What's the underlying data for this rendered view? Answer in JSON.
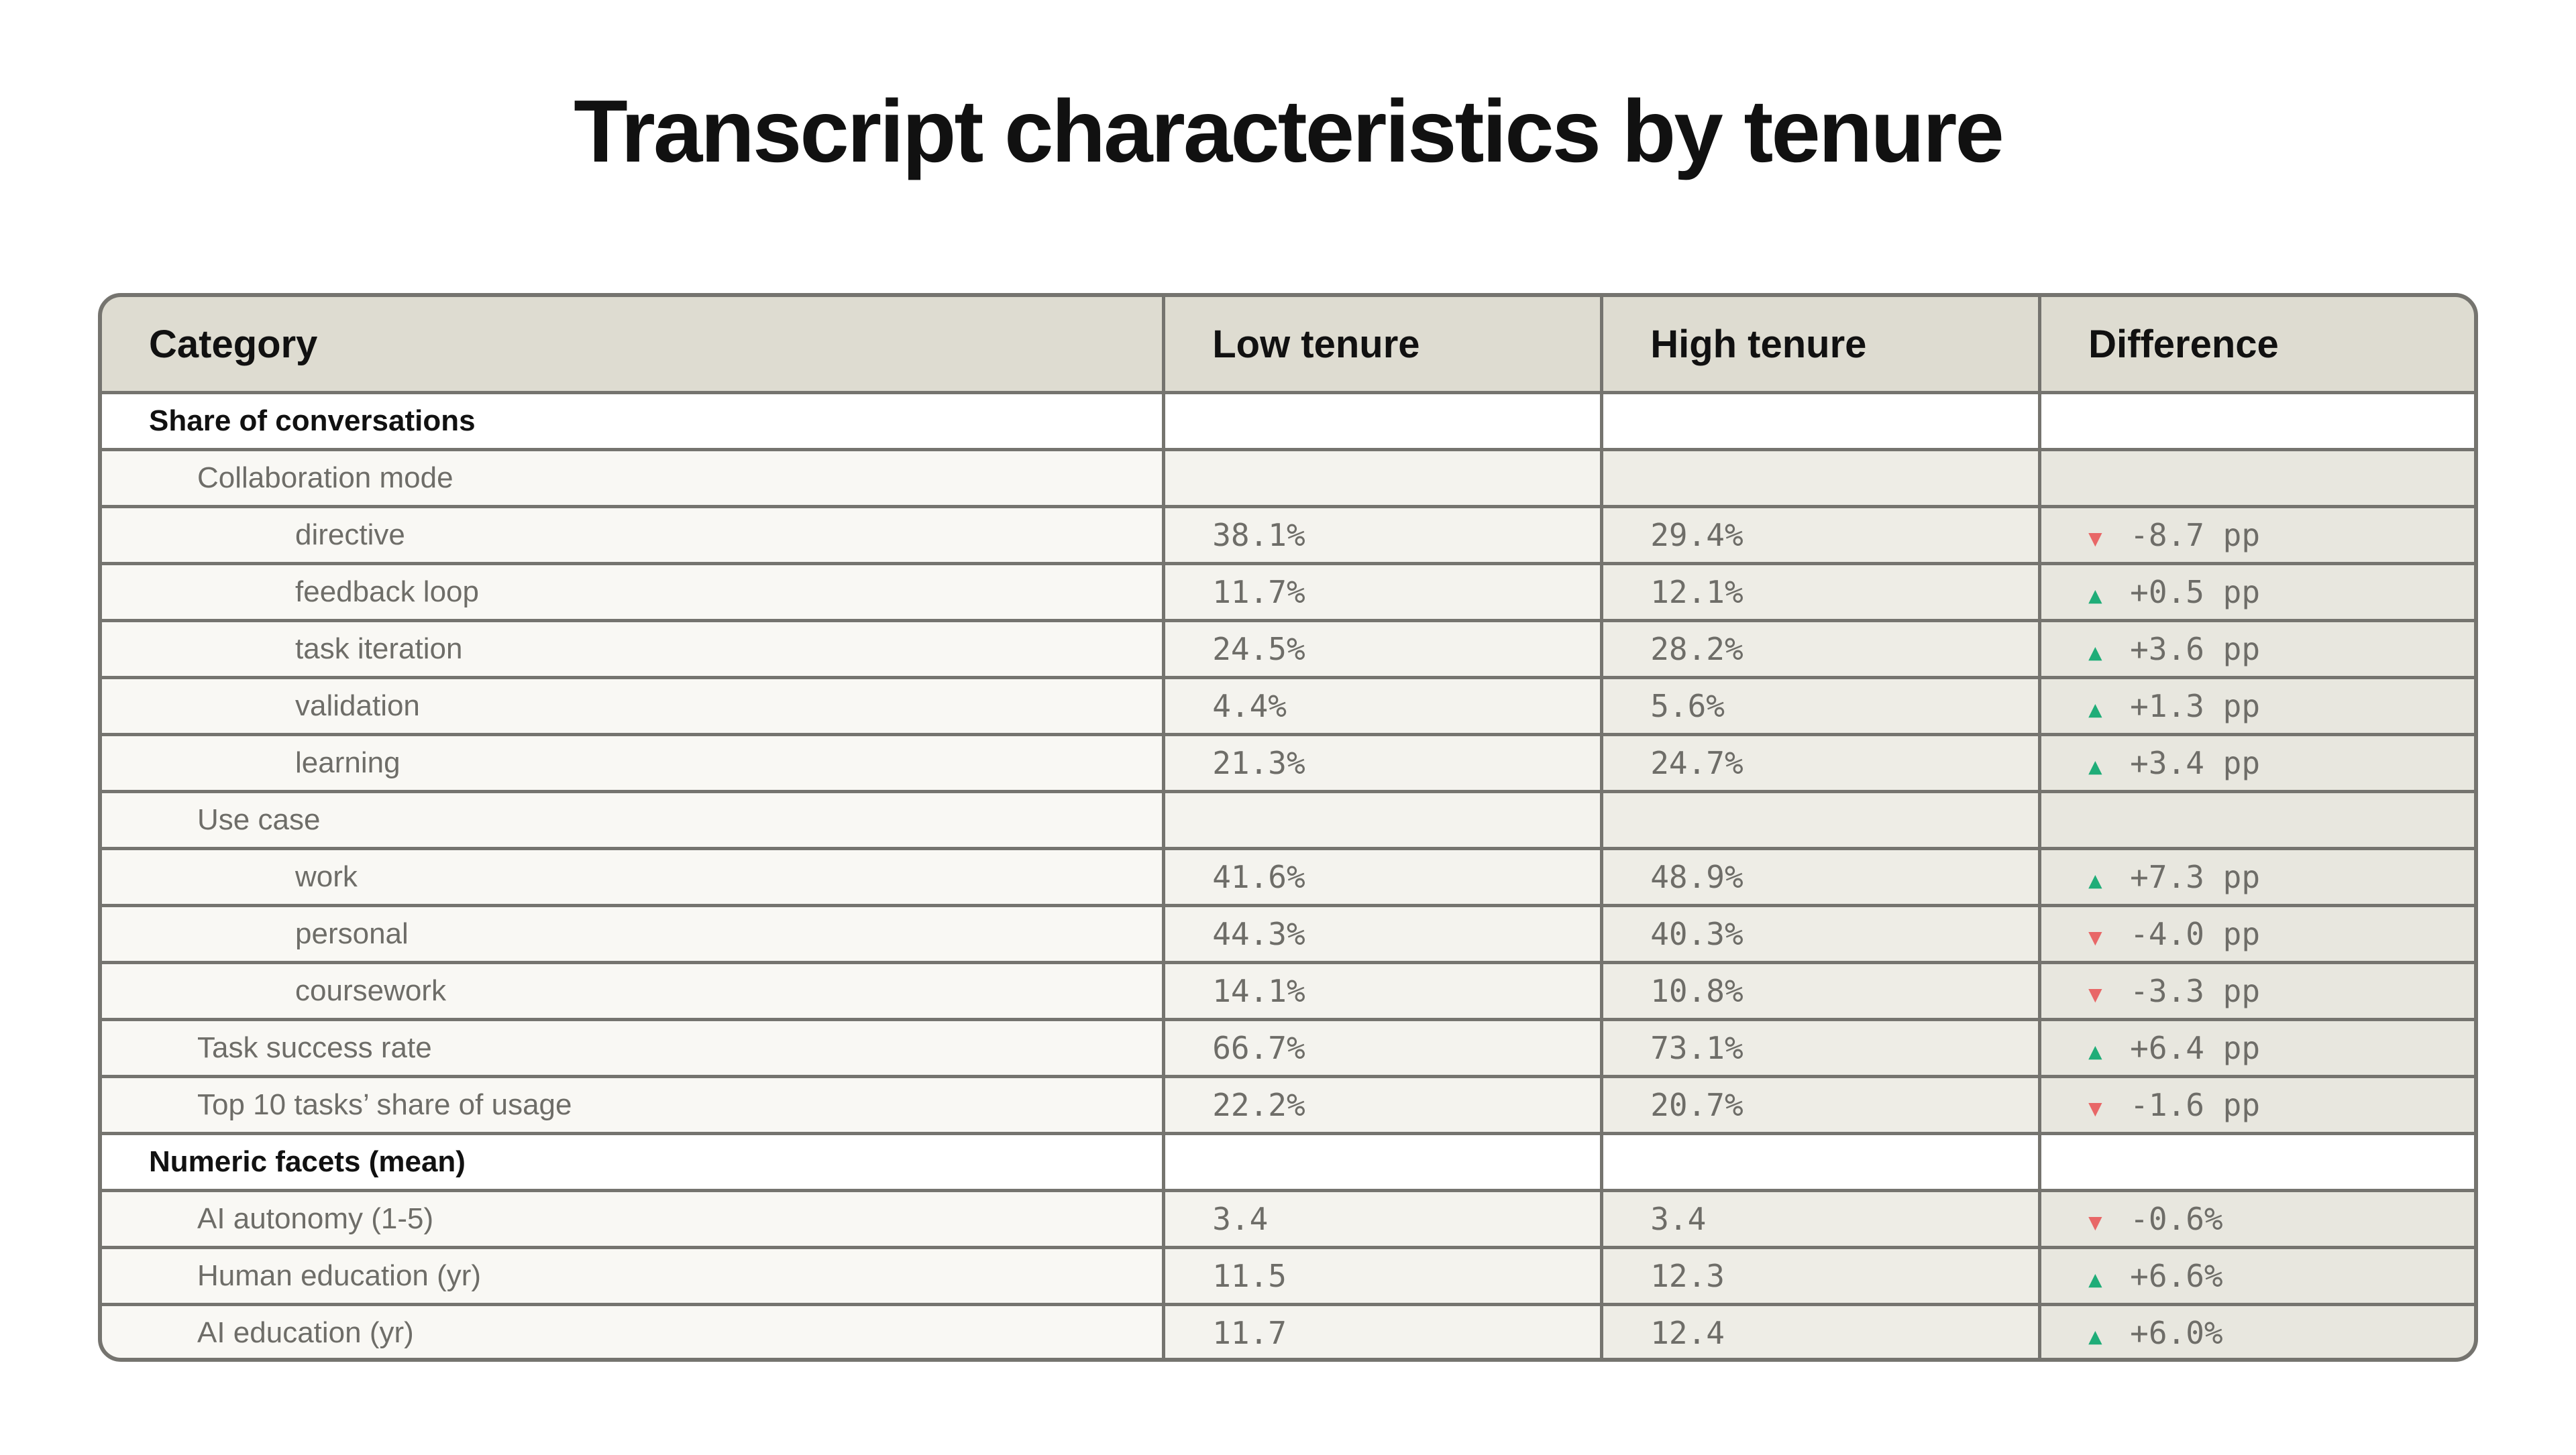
{
  "title": "Transcript characteristics by tenure",
  "table": {
    "headers": [
      "Category",
      "Low tenure",
      "High tenure",
      "Difference"
    ],
    "rows": [
      {
        "label": "Share of conversations",
        "level": 0,
        "section": true
      },
      {
        "label": "Collaboration mode",
        "level": 1
      },
      {
        "label": "directive",
        "level": 2,
        "low": "38.1%",
        "high": "29.4%",
        "diff": "-8.7 pp",
        "direction": "down"
      },
      {
        "label": "feedback loop",
        "level": 2,
        "low": "11.7%",
        "high": "12.1%",
        "diff": "+0.5 pp",
        "direction": "up"
      },
      {
        "label": "task iteration",
        "level": 2,
        "low": "24.5%",
        "high": "28.2%",
        "diff": "+3.6 pp",
        "direction": "up"
      },
      {
        "label": "validation",
        "level": 2,
        "low": "4.4%",
        "high": "5.6%",
        "diff": "+1.3 pp",
        "direction": "up"
      },
      {
        "label": "learning",
        "level": 2,
        "low": "21.3%",
        "high": "24.7%",
        "diff": "+3.4 pp",
        "direction": "up"
      },
      {
        "label": "Use case",
        "level": 1
      },
      {
        "label": "work",
        "level": 2,
        "low": "41.6%",
        "high": "48.9%",
        "diff": "+7.3 pp",
        "direction": "up"
      },
      {
        "label": "personal",
        "level": 2,
        "low": "44.3%",
        "high": "40.3%",
        "diff": "-4.0 pp",
        "direction": "down"
      },
      {
        "label": "coursework",
        "level": 2,
        "low": "14.1%",
        "high": "10.8%",
        "diff": "-3.3 pp",
        "direction": "down"
      },
      {
        "label": "Task success rate",
        "level": 1,
        "low": "66.7%",
        "high": "73.1%",
        "diff": "+6.4 pp",
        "direction": "up"
      },
      {
        "label": "Top 10 tasks’ share of usage",
        "level": 1,
        "low": "22.2%",
        "high": "20.7%",
        "diff": "-1.6 pp",
        "direction": "down"
      },
      {
        "label": "Numeric facets (mean)",
        "level": 0,
        "section": true
      },
      {
        "label": "AI autonomy (1-5)",
        "level": 1,
        "low": "3.4",
        "high": "3.4",
        "diff": "-0.6%",
        "direction": "down"
      },
      {
        "label": "Human education (yr)",
        "level": 1,
        "low": "11.5",
        "high": "12.3",
        "diff": "+6.6%",
        "direction": "up"
      },
      {
        "label": "AI education (yr)",
        "level": 1,
        "low": "11.7",
        "high": "12.4",
        "diff": "+6.0%",
        "direction": "up"
      }
    ]
  },
  "colors": {
    "up": "#1fad78",
    "down": "#e86767",
    "header_bg": "#dedcd1",
    "border": "#75746f"
  },
  "icons": {
    "up": "triangle-up-icon",
    "down": "triangle-down-icon"
  }
}
